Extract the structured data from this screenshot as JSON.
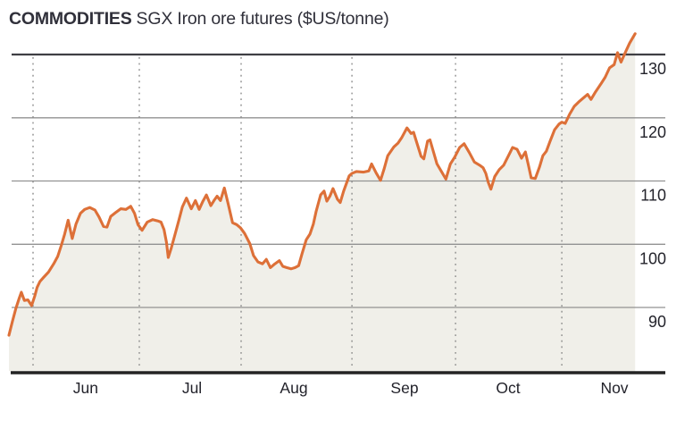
{
  "header": {
    "kicker": "COMMODITIES",
    "title": "SGX Iron ore futures ($US/tonne)"
  },
  "chart_data": {
    "type": "area",
    "title": "SGX Iron ore futures ($US/tonne)",
    "unit": "$US/tonne",
    "line_color": "#dd7038",
    "fill_color": "#f0efe9",
    "grid_color": "#929292",
    "top_line_color": "#3f3f44",
    "axis_color": "#232323",
    "label_color": "#23232b",
    "ylim": [
      79.7,
      134.5
    ],
    "y_ticks": [
      90,
      100,
      110,
      120,
      130
    ],
    "x_unit": "days_from_series_start",
    "x_ticks": [
      {
        "label": "Jun",
        "day": 7
      },
      {
        "label": "Jul",
        "day": 37.9
      },
      {
        "label": "Aug",
        "day": 67.5
      },
      {
        "label": "Sep",
        "day": 99.7
      },
      {
        "label": "Oct",
        "day": 129.8
      },
      {
        "label": "Nov",
        "day": 160.7
      }
    ],
    "month_label_offset_days": 15.3,
    "points": [
      [
        0,
        85.6
      ],
      [
        1,
        87.8
      ],
      [
        2,
        89.8
      ],
      [
        3,
        91.5
      ],
      [
        3.6,
        92.4
      ],
      [
        4.5,
        91.1
      ],
      [
        5.5,
        91.2
      ],
      [
        6.6,
        90.3
      ],
      [
        7.5,
        91.8
      ],
      [
        8.2,
        93.2
      ],
      [
        9,
        94.1
      ],
      [
        10,
        94.7
      ],
      [
        11.5,
        95.6
      ],
      [
        13,
        96.9
      ],
      [
        14.2,
        98.1
      ],
      [
        15.2,
        99.8
      ],
      [
        16.2,
        101.6
      ],
      [
        17.2,
        103.8
      ],
      [
        18.4,
        100.9
      ],
      [
        19.5,
        103.2
      ],
      [
        20.8,
        104.9
      ],
      [
        22,
        105.5
      ],
      [
        23.5,
        105.8
      ],
      [
        25,
        105.4
      ],
      [
        26.2,
        104.3
      ],
      [
        27.5,
        102.8
      ],
      [
        28.5,
        102.7
      ],
      [
        29.6,
        104.4
      ],
      [
        31,
        105.0
      ],
      [
        32.5,
        105.6
      ],
      [
        34,
        105.5
      ],
      [
        35.4,
        106.0
      ],
      [
        36.5,
        104.9
      ],
      [
        37.5,
        103.1
      ],
      [
        38.7,
        102.2
      ],
      [
        40.2,
        103.5
      ],
      [
        41.8,
        103.9
      ],
      [
        43.2,
        103.7
      ],
      [
        44.2,
        103.5
      ],
      [
        45.1,
        102.3
      ],
      [
        45.8,
        100.3
      ],
      [
        46.3,
        97.9
      ],
      [
        47.2,
        99.4
      ],
      [
        48.3,
        101.6
      ],
      [
        49.4,
        103.8
      ],
      [
        50.4,
        105.9
      ],
      [
        51.6,
        107.3
      ],
      [
        53,
        105.6
      ],
      [
        54.2,
        106.9
      ],
      [
        55.3,
        105.5
      ],
      [
        56.3,
        106.7
      ],
      [
        57.4,
        107.8
      ],
      [
        58.7,
        106.1
      ],
      [
        59.6,
        106.9
      ],
      [
        60.5,
        107.6
      ],
      [
        61.5,
        106.9
      ],
      [
        62.6,
        108.9
      ],
      [
        63.8,
        106.2
      ],
      [
        65,
        103.4
      ],
      [
        66.2,
        103.1
      ],
      [
        67.3,
        102.6
      ],
      [
        68.5,
        101.7
      ],
      [
        70,
        100.1
      ],
      [
        71.1,
        98.2
      ],
      [
        72.4,
        97.2
      ],
      [
        73.7,
        96.9
      ],
      [
        74.8,
        97.6
      ],
      [
        76,
        96.3
      ],
      [
        77.3,
        96.9
      ],
      [
        78.6,
        97.4
      ],
      [
        79.6,
        96.5
      ],
      [
        80.7,
        96.3
      ],
      [
        82,
        96.1
      ],
      [
        83.2,
        96.3
      ],
      [
        84.2,
        96.6
      ],
      [
        85.2,
        98.5
      ],
      [
        86.4,
        100.7
      ],
      [
        87.5,
        101.6
      ],
      [
        88.5,
        103.2
      ],
      [
        89.3,
        105.2
      ],
      [
        90.6,
        107.8
      ],
      [
        91.6,
        108.4
      ],
      [
        92.4,
        106.8
      ],
      [
        93.3,
        107.6
      ],
      [
        94.2,
        108.8
      ],
      [
        95.5,
        107.1
      ],
      [
        96.3,
        106.6
      ],
      [
        97.3,
        108.4
      ],
      [
        98.9,
        110.8
      ],
      [
        99.7,
        111.2
      ],
      [
        101,
        111.5
      ],
      [
        103,
        111.4
      ],
      [
        104.6,
        111.6
      ],
      [
        105.4,
        112.7
      ],
      [
        106.7,
        111.3
      ],
      [
        108,
        110.1
      ],
      [
        109.1,
        112.0
      ],
      [
        110.1,
        114.0
      ],
      [
        111.9,
        115.4
      ],
      [
        113.1,
        116.0
      ],
      [
        114.2,
        116.9
      ],
      [
        115.7,
        118.4
      ],
      [
        116.9,
        117.5
      ],
      [
        117.6,
        117.7
      ],
      [
        118.7,
        115.8
      ],
      [
        119.8,
        113.9
      ],
      [
        120.6,
        113.5
      ],
      [
        121.7,
        116.3
      ],
      [
        122.4,
        116.5
      ],
      [
        123.4,
        114.6
      ],
      [
        124.4,
        112.7
      ],
      [
        125.6,
        111.6
      ],
      [
        127,
        110.3
      ],
      [
        128.3,
        112.7
      ],
      [
        129.6,
        113.8
      ],
      [
        131,
        115.3
      ],
      [
        132.3,
        115.9
      ],
      [
        133.8,
        114.5
      ],
      [
        135.3,
        113.0
      ],
      [
        136.8,
        112.5
      ],
      [
        137.8,
        112.1
      ],
      [
        138.6,
        111.2
      ],
      [
        139.3,
        109.8
      ],
      [
        140.1,
        108.7
      ],
      [
        141.2,
        110.7
      ],
      [
        142.5,
        111.8
      ],
      [
        143.8,
        112.5
      ],
      [
        145.1,
        113.9
      ],
      [
        146.4,
        115.3
      ],
      [
        147.7,
        115.0
      ],
      [
        149,
        113.6
      ],
      [
        150.1,
        114.6
      ],
      [
        151,
        112.5
      ],
      [
        151.8,
        110.5
      ],
      [
        153,
        110.4
      ],
      [
        154.2,
        112.2
      ],
      [
        155.2,
        114.0
      ],
      [
        156.2,
        114.7
      ],
      [
        157.3,
        116.3
      ],
      [
        158.6,
        118.1
      ],
      [
        159.9,
        119.0
      ],
      [
        160.7,
        119.3
      ],
      [
        161.7,
        119.1
      ],
      [
        163,
        120.6
      ],
      [
        164.3,
        121.8
      ],
      [
        165.6,
        122.5
      ],
      [
        166.9,
        123.1
      ],
      [
        168.2,
        123.7
      ],
      [
        169.2,
        122.9
      ],
      [
        170.5,
        124.1
      ],
      [
        172,
        125.3
      ],
      [
        173.3,
        126.4
      ],
      [
        174.6,
        127.9
      ],
      [
        175.9,
        128.4
      ],
      [
        176.9,
        130.3
      ],
      [
        177.9,
        128.8
      ],
      [
        179.2,
        130.4
      ],
      [
        180.4,
        131.8
      ],
      [
        182,
        133.3
      ]
    ]
  }
}
